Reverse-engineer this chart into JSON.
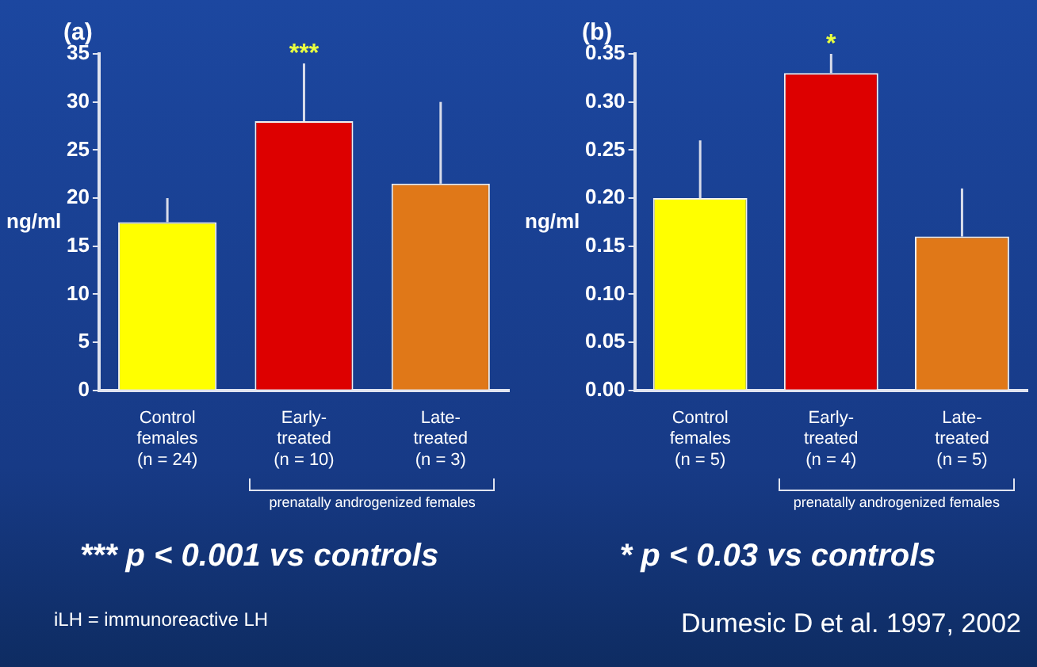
{
  "chart_data": [
    {
      "type": "bar",
      "title": "(a)",
      "ylabel": "ng/ml",
      "categories": [
        "Control\nfemales\n(n = 24)",
        "Early-\ntreated\n(n = 10)",
        "Late-\ntreated\n(n = 3)"
      ],
      "values": [
        17.5,
        28,
        21.5
      ],
      "colors": [
        "#ffff00",
        "#dd0000",
        "#e07818"
      ],
      "errors": [
        2.5,
        6,
        8.5
      ],
      "ylim": [
        0,
        35
      ],
      "yticks": [
        0,
        5,
        10,
        15,
        20,
        25,
        30,
        35
      ],
      "annotations": [
        {
          "text": "***",
          "x": "Early-\ntreated\n(n = 10)",
          "y": 34
        },
        "prenatally androgenized females",
        "*** p < 0.001 vs controls",
        "iLH = immunoreactive LH"
      ]
    },
    {
      "type": "bar",
      "title": "(b)",
      "ylabel": "ng/ml",
      "categories": [
        "Control\nfemales\n(n = 5)",
        "Early-\ntreated\n(n = 4)",
        "Late-\ntreated\n(n = 5)"
      ],
      "values": [
        0.2,
        0.33,
        0.16
      ],
      "colors": [
        "#ffff00",
        "#dd0000",
        "#e07818"
      ],
      "errors": [
        0.06,
        0.02,
        0.05
      ],
      "ylim": [
        0,
        0.35
      ],
      "yticks": [
        {
          "value": 0,
          "label": "0.00"
        },
        {
          "value": 0.05,
          "label": "0.05"
        },
        {
          "value": 0.1,
          "label": "0.10"
        },
        {
          "value": 0.15,
          "label": "0.15"
        },
        {
          "value": 0.2,
          "label": "0.20"
        },
        {
          "value": 0.25,
          "label": "0.25"
        },
        {
          "value": 0.3,
          "label": "0.30"
        },
        {
          "value": 0.35,
          "label": "0.35"
        }
      ],
      "annotations": [
        {
          "text": "*",
          "x": "Early-\ntreated\n(n = 4)",
          "y": 0.35
        },
        "prenatally androgenized females",
        "* p < 0.03 vs controls",
        "Dumesic D et al. 1997, 2002"
      ]
    }
  ]
}
